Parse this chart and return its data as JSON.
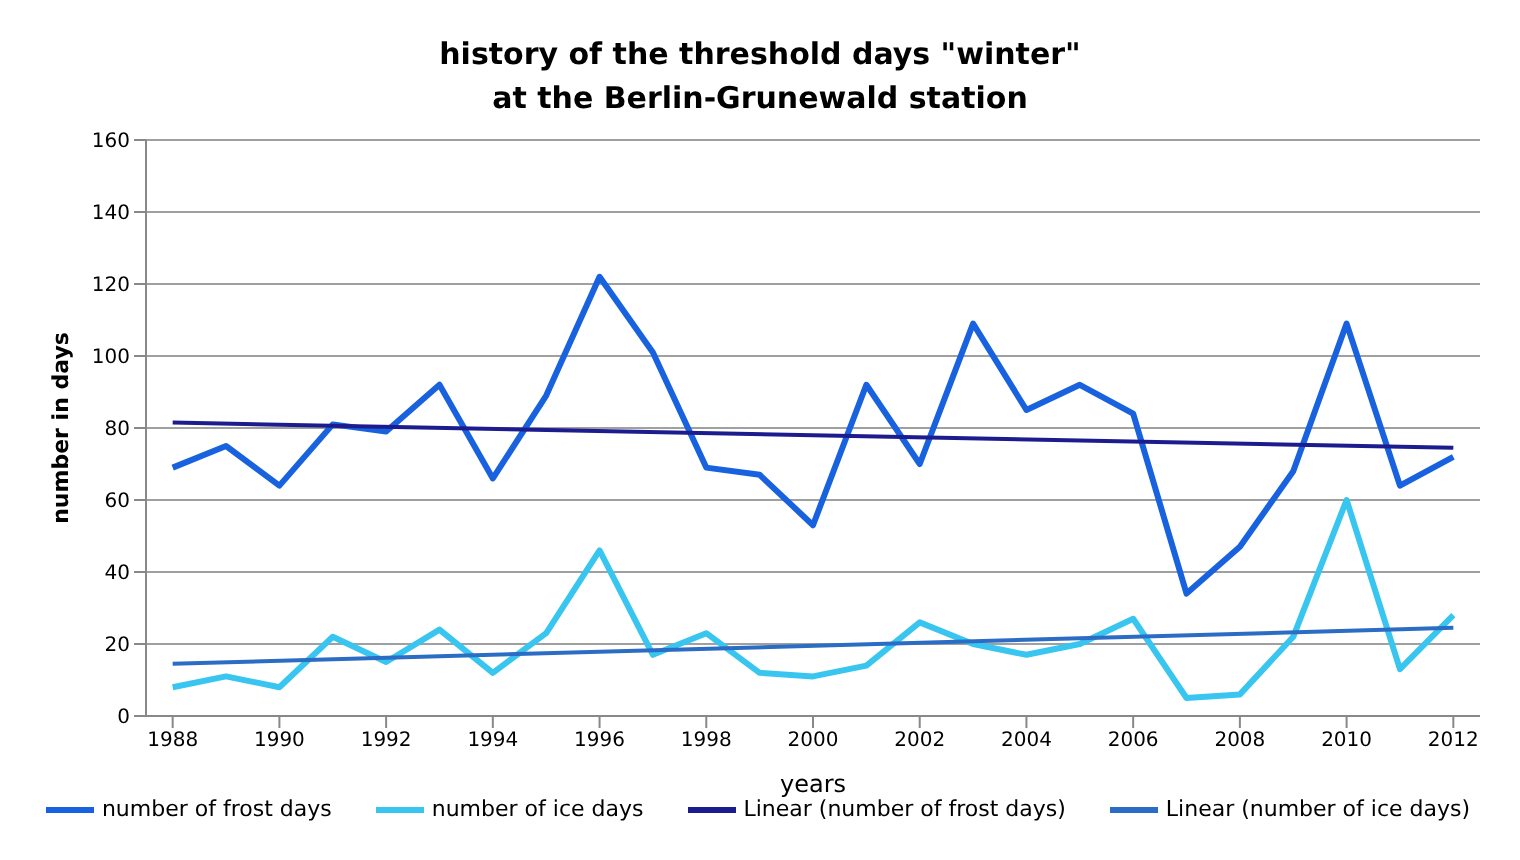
{
  "chart_data": {
    "type": "line",
    "title": "history of the threshold days \"winter\"\nat the Berlin-Grunewald station",
    "xlabel": "years",
    "ylabel": "number in days",
    "x": [
      1988,
      1989,
      1990,
      1991,
      1992,
      1993,
      1994,
      1995,
      1996,
      1997,
      1998,
      1999,
      2000,
      2001,
      2002,
      2003,
      2004,
      2005,
      2006,
      2007,
      2008,
      2009,
      2010,
      2011,
      2012
    ],
    "series": [
      {
        "name": "number of frost days",
        "color": "#1862e0",
        "values": [
          69,
          75,
          64,
          81,
          79,
          92,
          66,
          89,
          122,
          101,
          69,
          67,
          53,
          92,
          70,
          109,
          85,
          92,
          84,
          34,
          47,
          68,
          109,
          64,
          72
        ]
      },
      {
        "name": "number of ice days",
        "color": "#38c6f0",
        "values": [
          8,
          11,
          8,
          22,
          15,
          24,
          12,
          23,
          46,
          17,
          23,
          12,
          11,
          14,
          26,
          20,
          17,
          20,
          27,
          5,
          6,
          22,
          60,
          13,
          28
        ]
      },
      {
        "name": "Linear (number of frost days)",
        "color": "#1c1c8e",
        "values": [
          81.5,
          null,
          null,
          null,
          null,
          null,
          null,
          null,
          null,
          null,
          null,
          null,
          null,
          null,
          null,
          null,
          null,
          null,
          null,
          null,
          null,
          null,
          null,
          null,
          74.5
        ]
      },
      {
        "name": "Linear (number of ice days)",
        "color": "#2b6cc4",
        "values": [
          14.5,
          null,
          null,
          null,
          null,
          null,
          null,
          null,
          null,
          null,
          null,
          null,
          null,
          null,
          null,
          null,
          null,
          null,
          null,
          null,
          null,
          null,
          null,
          null,
          24.5
        ]
      }
    ],
    "xlim": [
      1987.5,
      2012.5
    ],
    "xticks": [
      1988,
      1990,
      1992,
      1994,
      1996,
      1998,
      2000,
      2002,
      2004,
      2006,
      2008,
      2010,
      2012
    ],
    "ylim": [
      0,
      160
    ],
    "yticks": [
      0,
      20,
      40,
      60,
      80,
      100,
      120,
      140,
      160
    ],
    "grid": "y",
    "legend": "bottom",
    "marker": "none",
    "line_style": "solid"
  }
}
